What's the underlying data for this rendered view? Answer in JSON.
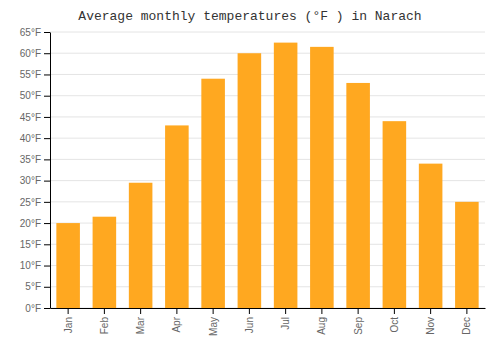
{
  "chart_data": {
    "type": "bar",
    "title": "Average monthly temperatures (°F ) in Narach",
    "categories": [
      "Jan",
      "Feb",
      "Mar",
      "Apr",
      "May",
      "Jun",
      "Jul",
      "Aug",
      "Sep",
      "Oct",
      "Nov",
      "Dec"
    ],
    "values": [
      20,
      21.5,
      29.5,
      43,
      54,
      60,
      62.5,
      61.5,
      53,
      44,
      34,
      25
    ],
    "color": "#FFA820",
    "ylim": [
      0,
      65
    ],
    "yticks": [
      {
        "value": 0,
        "label": "0°F"
      },
      {
        "value": 5,
        "label": "5°F"
      },
      {
        "value": 10,
        "label": "10°F"
      },
      {
        "value": 15,
        "label": "15°F"
      },
      {
        "value": 20,
        "label": "20°F"
      },
      {
        "value": 25,
        "label": "25°F"
      },
      {
        "value": 30,
        "label": "30°F"
      },
      {
        "value": 35,
        "label": "35°F"
      },
      {
        "value": 40,
        "label": "40°F"
      },
      {
        "value": 45,
        "label": "45°F"
      },
      {
        "value": 50,
        "label": "50°F"
      },
      {
        "value": 55,
        "label": "55°F"
      },
      {
        "value": 60,
        "label": "60°F"
      },
      {
        "value": 65,
        "label": "65°F"
      }
    ],
    "grid": true
  }
}
